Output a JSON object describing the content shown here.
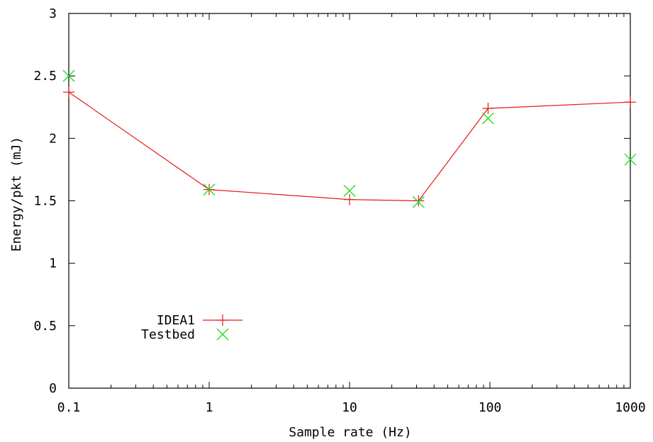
{
  "chart_data": {
    "type": "line",
    "xlabel": "Sample rate (Hz)",
    "ylabel": "Energy/pkt (mJ)",
    "xscale": "log",
    "xlim": [
      0.1,
      1000
    ],
    "ylim": [
      0,
      3
    ],
    "xticks": [
      {
        "value": 0.1,
        "label": "0.1"
      },
      {
        "value": 1,
        "label": "1"
      },
      {
        "value": 10,
        "label": "10"
      },
      {
        "value": 100,
        "label": "100"
      },
      {
        "value": 1000,
        "label": "1000"
      }
    ],
    "yticks": [
      {
        "value": 0,
        "label": "0"
      },
      {
        "value": 0.5,
        "label": "0.5"
      },
      {
        "value": 1,
        "label": "1"
      },
      {
        "value": 1.5,
        "label": "1.5"
      },
      {
        "value": 2,
        "label": "2"
      },
      {
        "value": 2.5,
        "label": "2.5"
      },
      {
        "value": 3,
        "label": "3"
      }
    ],
    "grid": false,
    "legend_position": "bottom-left",
    "series": [
      {
        "name": "IDEA1",
        "style": "line+plus",
        "color": "#e41a1c",
        "x": [
          0.1,
          1,
          10,
          31,
          97,
          1000
        ],
        "y": [
          2.37,
          1.59,
          1.51,
          1.5,
          2.24,
          2.29
        ]
      },
      {
        "name": "Testbed",
        "style": "cross",
        "color": "#22dd22",
        "x": [
          0.1,
          1,
          10,
          31,
          97,
          1000
        ],
        "y": [
          2.5,
          1.59,
          1.58,
          1.49,
          2.16,
          1.83
        ]
      }
    ]
  }
}
